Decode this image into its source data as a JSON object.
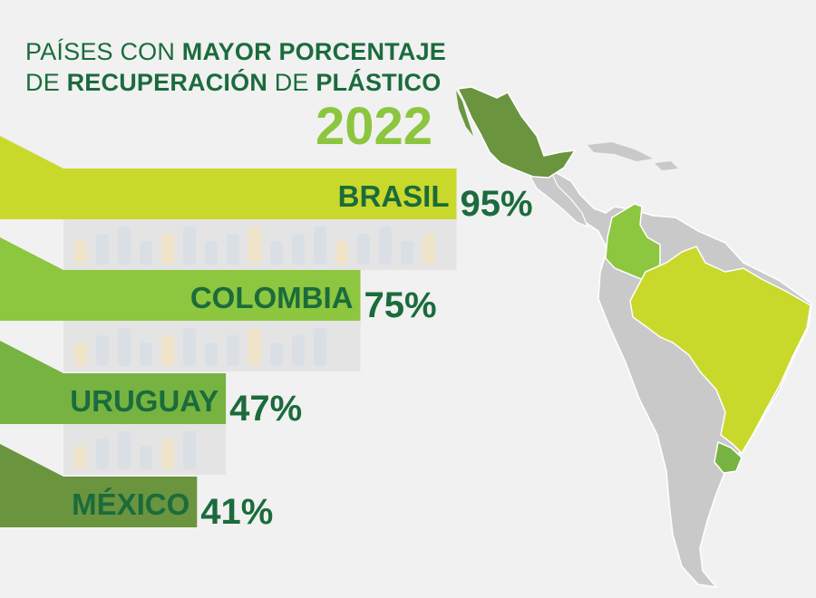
{
  "title": {
    "line1_a": "PAÍSES CON ",
    "line1_b": "MAYOR PORCENTAJE",
    "line2_a": "DE ",
    "line2_b": "RECUPERACIÓN",
    "line2_c": " DE ",
    "line2_d": "PLÁSTICO",
    "year": "2022"
  },
  "colors": {
    "title_dark": "#1b6b3c",
    "title_year": "#8cc63f",
    "label": "#1b6b3c",
    "map_grey": "#c9c9c9",
    "map_border": "#ffffff"
  },
  "chart_data": {
    "type": "bar",
    "orientation": "horizontal",
    "unit": "%",
    "categories": [
      "BRASIL",
      "COLOMBIA",
      "URUGUAY",
      "MÉXICO"
    ],
    "values": [
      95,
      75,
      47,
      41
    ],
    "value_labels": [
      "95%",
      "75%",
      "47%",
      "41%"
    ],
    "bar_colors": [
      "#c8d92b",
      "#8dc63f",
      "#76b340",
      "#6a943e"
    ],
    "xlim": [
      0,
      100
    ],
    "legend": "none",
    "grid": false
  },
  "map": {
    "highlighted": [
      {
        "country": "MÉXICO",
        "color": "#6a943e"
      },
      {
        "country": "COLOMBIA",
        "color": "#8dc63f"
      },
      {
        "country": "BRASIL",
        "color": "#c8d92b"
      },
      {
        "country": "URUGUAY",
        "color": "#76b340"
      }
    ]
  }
}
